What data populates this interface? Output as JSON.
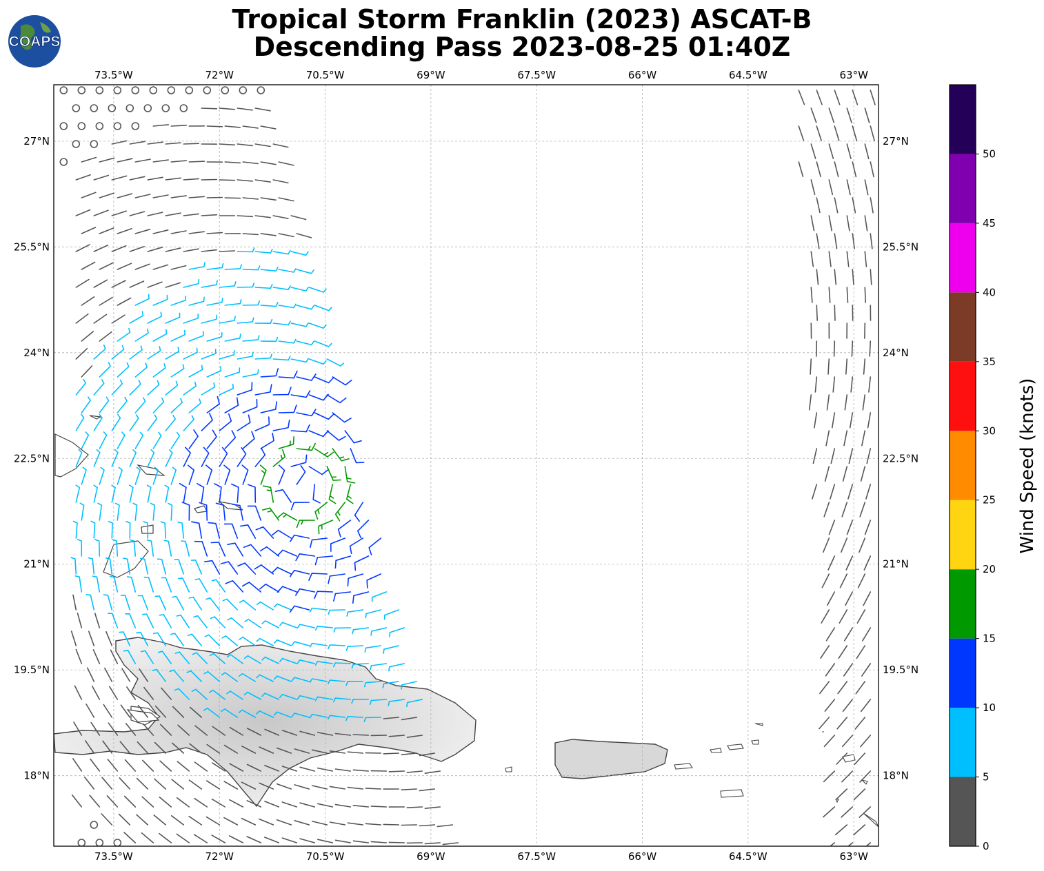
{
  "title": {
    "line1": "Tropical Storm Franklin (2023) ASCAT-B",
    "line2": "Descending Pass 2023-08-25 01:40Z"
  },
  "logo": {
    "text": "COAPS",
    "icon": "globe-logo-icon"
  },
  "map": {
    "lon_range": [
      -74.35,
      -62.65
    ],
    "lat_range": [
      17.0,
      27.8
    ],
    "lon_ticks": [
      {
        "value": -73.5,
        "label": "73.5°W"
      },
      {
        "value": -72.0,
        "label": "72°W"
      },
      {
        "value": -70.5,
        "label": "70.5°W"
      },
      {
        "value": -69.0,
        "label": "69°W"
      },
      {
        "value": -67.5,
        "label": "67.5°W"
      },
      {
        "value": -66.0,
        "label": "66°W"
      },
      {
        "value": -64.5,
        "label": "64.5°W"
      },
      {
        "value": -63.0,
        "label": "63°W"
      }
    ],
    "lat_ticks": [
      {
        "value": 27.0,
        "label": "27°N"
      },
      {
        "value": 25.5,
        "label": "25.5°N"
      },
      {
        "value": 24.0,
        "label": "24°N"
      },
      {
        "value": 22.5,
        "label": "22.5°N"
      },
      {
        "value": 21.0,
        "label": "21°N"
      },
      {
        "value": 19.5,
        "label": "19.5°N"
      },
      {
        "value": 18.0,
        "label": "18°N"
      }
    ],
    "gridlines": true,
    "storm_center": {
      "lon": -70.8,
      "lat": 22.1
    },
    "land_color": "#e6e6e6",
    "coast_color": "#444444"
  },
  "colorbar": {
    "label": "Wind Speed (knots)",
    "ticks": [
      "0",
      "5",
      "10",
      "15",
      "20",
      "25",
      "30",
      "35",
      "40",
      "45",
      "50"
    ],
    "bins": [
      {
        "min": 0,
        "max": 5,
        "color": "#555555"
      },
      {
        "min": 5,
        "max": 10,
        "color": "#00bfff"
      },
      {
        "min": 10,
        "max": 15,
        "color": "#0037ff"
      },
      {
        "min": 15,
        "max": 20,
        "color": "#009900"
      },
      {
        "min": 20,
        "max": 25,
        "color": "#ffd511"
      },
      {
        "min": 25,
        "max": 30,
        "color": "#ff8c00"
      },
      {
        "min": 30,
        "max": 35,
        "color": "#ff1010"
      },
      {
        "min": 35,
        "max": 40,
        "color": "#7b3b27"
      },
      {
        "min": 40,
        "max": 45,
        "color": "#ee00ee"
      },
      {
        "min": 45,
        "max": 50,
        "color": "#8000b0"
      },
      {
        "min": 50,
        "max": 55,
        "color": "#240059"
      }
    ]
  }
}
